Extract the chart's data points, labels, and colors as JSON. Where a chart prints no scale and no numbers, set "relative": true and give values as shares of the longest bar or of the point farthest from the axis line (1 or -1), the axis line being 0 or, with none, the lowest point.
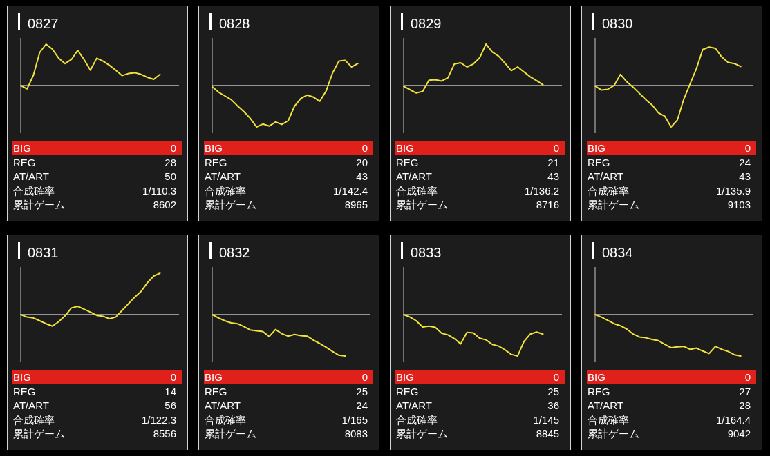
{
  "chart_data": [
    {
      "type": "line",
      "title": "0827",
      "relative": true,
      "color": "#f2e23c",
      "categories": [
        null,
        null,
        null,
        null,
        null,
        null,
        null,
        null,
        null,
        null,
        null,
        null,
        null,
        null,
        null,
        null,
        null,
        null,
        null,
        null,
        null,
        null,
        null,
        null,
        null,
        null
      ],
      "values": [
        0,
        -0.08,
        0.25,
        0.8,
        1,
        0.88,
        0.66,
        0.53,
        0.63,
        0.85,
        0.63,
        0.37,
        0.66,
        0.59,
        0.49,
        0.37,
        0.24,
        0.29,
        0.31,
        0.27,
        0.2,
        0.15,
        0.27,
        null,
        null,
        null
      ],
      "annotations": [
        "BIG",
        "0",
        "REG",
        "28",
        "AT/ART",
        "50",
        "合成確率",
        "1/110.3",
        "累計ゲーム",
        "8602"
      ]
    },
    {
      "type": "line",
      "title": "0828",
      "relative": true,
      "color": "#f2e23c",
      "categories": [
        null,
        null,
        null,
        null,
        null,
        null,
        null,
        null,
        null,
        null,
        null,
        null,
        null,
        null,
        null,
        null,
        null,
        null,
        null,
        null,
        null,
        null,
        null,
        null,
        null,
        null
      ],
      "values": [
        -0.03,
        -0.16,
        -0.25,
        -0.34,
        -0.49,
        -0.63,
        -0.79,
        -1,
        -0.93,
        -0.98,
        -0.88,
        -0.94,
        -0.85,
        -0.5,
        -0.31,
        -0.23,
        -0.28,
        -0.38,
        -0.13,
        0.3,
        0.59,
        0.61,
        0.45,
        0.53,
        null,
        null
      ],
      "annotations": [
        "BIG",
        "0",
        "REG",
        "20",
        "AT/ART",
        "43",
        "合成確率",
        "1/142.4",
        "累計ゲーム",
        "8965"
      ]
    },
    {
      "type": "line",
      "title": "0829",
      "relative": true,
      "color": "#f2e23c",
      "categories": [
        null,
        null,
        null,
        null,
        null,
        null,
        null,
        null,
        null,
        null,
        null,
        null,
        null,
        null,
        null,
        null,
        null,
        null,
        null,
        null,
        null,
        null,
        null,
        null,
        null,
        null
      ],
      "values": [
        -0.02,
        -0.1,
        -0.18,
        -0.14,
        0.13,
        0.14,
        0.11,
        0.19,
        0.52,
        0.55,
        0.45,
        0.52,
        0.67,
        1,
        0.81,
        0.71,
        0.54,
        0.36,
        0.45,
        0.33,
        0.21,
        0.12,
        0.02,
        null,
        null,
        null
      ],
      "annotations": [
        "BIG",
        "0",
        "REG",
        "21",
        "AT/ART",
        "43",
        "合成確率",
        "1/136.2",
        "累計ゲーム",
        "8716"
      ]
    },
    {
      "type": "line",
      "title": "0830",
      "relative": true,
      "color": "#f2e23c",
      "categories": [
        null,
        null,
        null,
        null,
        null,
        null,
        null,
        null,
        null,
        null,
        null,
        null,
        null,
        null,
        null,
        null,
        null,
        null,
        null,
        null,
        null,
        null,
        null,
        null,
        null,
        null
      ],
      "values": [
        -0.01,
        -0.11,
        -0.09,
        0,
        0.27,
        0.09,
        -0.04,
        -0.19,
        -0.34,
        -0.47,
        -0.66,
        -0.74,
        -1,
        -0.83,
        -0.33,
        0.04,
        0.41,
        0.87,
        0.93,
        0.9,
        0.69,
        0.56,
        0.53,
        0.46,
        null,
        null
      ],
      "annotations": [
        "BIG",
        "0",
        "REG",
        "24",
        "AT/ART",
        "43",
        "合成確率",
        "1/135.9",
        "累計ゲーム",
        "9103"
      ]
    },
    {
      "type": "line",
      "title": "0831",
      "relative": true,
      "color": "#f2e23c",
      "categories": [
        null,
        null,
        null,
        null,
        null,
        null,
        null,
        null,
        null,
        null,
        null,
        null,
        null,
        null,
        null,
        null,
        null,
        null,
        null,
        null,
        null,
        null,
        null,
        null,
        null,
        null
      ],
      "values": [
        0,
        -0.06,
        -0.08,
        -0.15,
        -0.22,
        -0.28,
        -0.17,
        -0.03,
        0.16,
        0.2,
        0.13,
        0.06,
        -0.02,
        -0.04,
        -0.1,
        -0.06,
        0.1,
        0.26,
        0.42,
        0.56,
        0.77,
        0.93,
        1,
        null,
        null,
        null
      ],
      "annotations": [
        "BIG",
        "0",
        "REG",
        "14",
        "AT/ART",
        "56",
        "合成確率",
        "1/122.3",
        "累計ゲーム",
        "8556"
      ]
    },
    {
      "type": "line",
      "title": "0832",
      "relative": true,
      "color": "#f2e23c",
      "categories": [
        null,
        null,
        null,
        null,
        null,
        null,
        null,
        null,
        null,
        null,
        null,
        null,
        null,
        null,
        null,
        null,
        null,
        null,
        null,
        null,
        null,
        null,
        null,
        null,
        null,
        null
      ],
      "values": [
        0,
        -0.08,
        -0.15,
        -0.2,
        -0.22,
        -0.29,
        -0.37,
        -0.39,
        -0.41,
        -0.53,
        -0.36,
        -0.46,
        -0.52,
        -0.48,
        -0.51,
        -0.52,
        -0.62,
        -0.7,
        -0.79,
        -0.89,
        -0.98,
        -1,
        null,
        null,
        null,
        null
      ],
      "annotations": [
        "BIG",
        "0",
        "REG",
        "25",
        "AT/ART",
        "24",
        "合成確率",
        "1/165",
        "累計ゲーム",
        "8083"
      ]
    },
    {
      "type": "line",
      "title": "0833",
      "relative": true,
      "color": "#f2e23c",
      "categories": [
        null,
        null,
        null,
        null,
        null,
        null,
        null,
        null,
        null,
        null,
        null,
        null,
        null,
        null,
        null,
        null,
        null,
        null,
        null,
        null,
        null,
        null,
        null,
        null,
        null,
        null
      ],
      "values": [
        0,
        -0.06,
        -0.15,
        -0.3,
        -0.28,
        -0.31,
        -0.45,
        -0.49,
        -0.58,
        -0.71,
        -0.43,
        -0.44,
        -0.57,
        -0.61,
        -0.72,
        -0.76,
        -0.85,
        -0.96,
        -1,
        -0.65,
        -0.47,
        -0.42,
        -0.47,
        null,
        null,
        null
      ],
      "annotations": [
        "BIG",
        "0",
        "REG",
        "25",
        "AT/ART",
        "36",
        "合成確率",
        "1/145",
        "累計ゲーム",
        "8845"
      ]
    },
    {
      "type": "line",
      "title": "0834",
      "relative": true,
      "color": "#f2e23c",
      "categories": [
        null,
        null,
        null,
        null,
        null,
        null,
        null,
        null,
        null,
        null,
        null,
        null,
        null,
        null,
        null,
        null,
        null,
        null,
        null,
        null,
        null,
        null,
        null,
        null,
        null,
        null
      ],
      "values": [
        0,
        -0.06,
        -0.14,
        -0.22,
        -0.27,
        -0.35,
        -0.47,
        -0.54,
        -0.56,
        -0.6,
        -0.63,
        -0.72,
        -0.8,
        -0.78,
        -0.77,
        -0.84,
        -0.81,
        -0.88,
        -0.94,
        -0.77,
        -0.84,
        -0.89,
        -0.97,
        -1,
        null,
        null
      ],
      "annotations": [
        "BIG",
        "0",
        "REG",
        "27",
        "AT/ART",
        "28",
        "合成確率",
        "1/164.4",
        "累計ゲーム",
        "9042"
      ]
    }
  ]
}
